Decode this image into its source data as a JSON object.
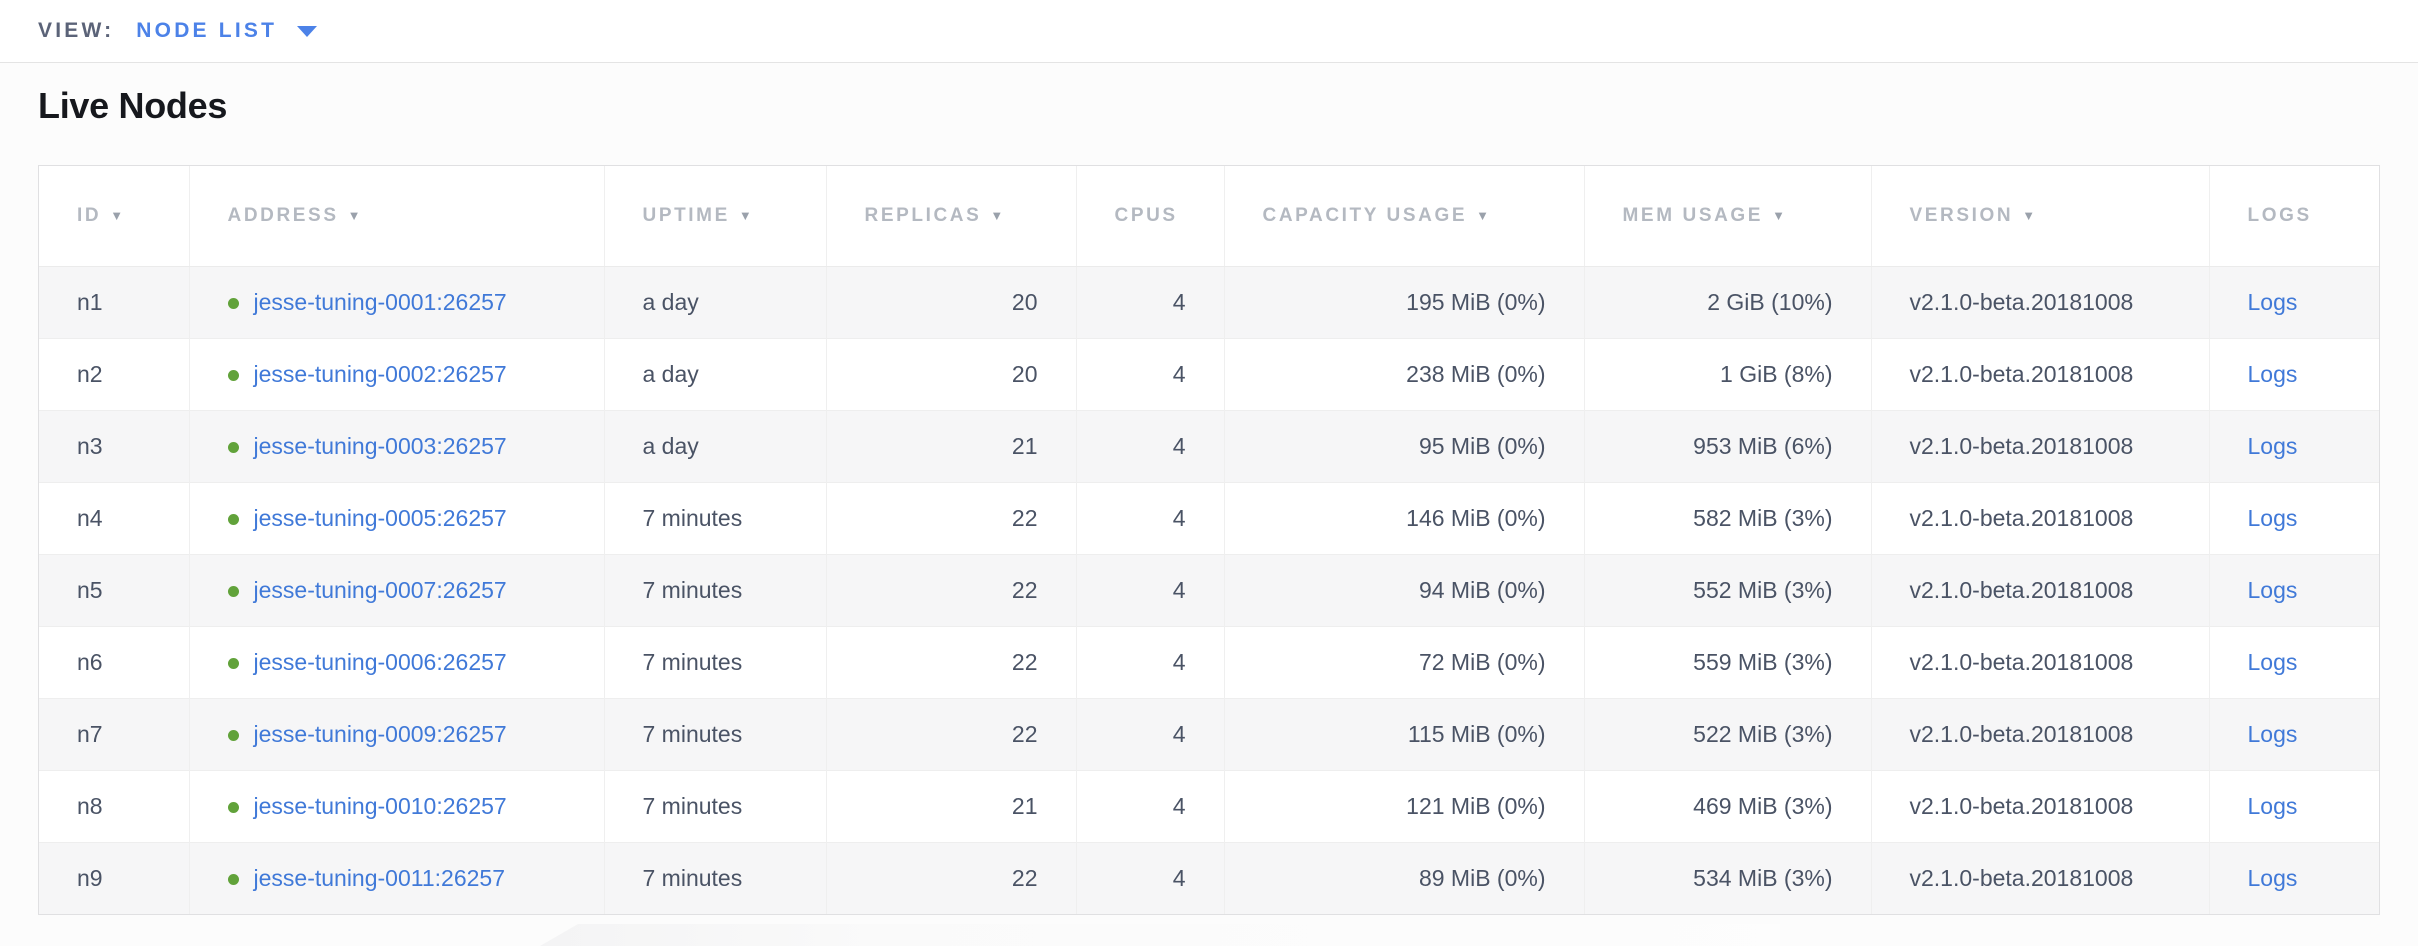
{
  "view_bar": {
    "label": "VIEW:",
    "selected_view": "NODE LIST"
  },
  "page": {
    "title": "Live Nodes"
  },
  "table": {
    "columns": [
      {
        "key": "id",
        "label": "ID",
        "sortable": true,
        "align": "left"
      },
      {
        "key": "address",
        "label": "ADDRESS",
        "sortable": true,
        "align": "left"
      },
      {
        "key": "uptime",
        "label": "UPTIME",
        "sortable": true,
        "align": "left"
      },
      {
        "key": "replicas",
        "label": "REPLICAS",
        "sortable": true,
        "align": "right"
      },
      {
        "key": "cpus",
        "label": "CPUS",
        "sortable": false,
        "align": "right"
      },
      {
        "key": "capacity_usage",
        "label": "CAPACITY USAGE",
        "sortable": true,
        "align": "right"
      },
      {
        "key": "mem_usage",
        "label": "MEM USAGE",
        "sortable": true,
        "align": "right"
      },
      {
        "key": "version",
        "label": "VERSION",
        "sortable": true,
        "align": "left"
      },
      {
        "key": "logs",
        "label": "LOGS",
        "sortable": false,
        "align": "left"
      }
    ],
    "rows": [
      {
        "id": "n1",
        "address": "jesse-tuning-0001:26257",
        "uptime": "a day",
        "replicas": "20",
        "cpus": "4",
        "capacity_usage": "195 MiB (0%)",
        "mem_usage": "2 GiB (10%)",
        "version": "v2.1.0-beta.20181008",
        "logs": "Logs",
        "status": "live"
      },
      {
        "id": "n2",
        "address": "jesse-tuning-0002:26257",
        "uptime": "a day",
        "replicas": "20",
        "cpus": "4",
        "capacity_usage": "238 MiB (0%)",
        "mem_usage": "1 GiB (8%)",
        "version": "v2.1.0-beta.20181008",
        "logs": "Logs",
        "status": "live"
      },
      {
        "id": "n3",
        "address": "jesse-tuning-0003:26257",
        "uptime": "a day",
        "replicas": "21",
        "cpus": "4",
        "capacity_usage": "95 MiB (0%)",
        "mem_usage": "953 MiB (6%)",
        "version": "v2.1.0-beta.20181008",
        "logs": "Logs",
        "status": "live"
      },
      {
        "id": "n4",
        "address": "jesse-tuning-0005:26257",
        "uptime": "7 minutes",
        "replicas": "22",
        "cpus": "4",
        "capacity_usage": "146 MiB (0%)",
        "mem_usage": "582 MiB (3%)",
        "version": "v2.1.0-beta.20181008",
        "logs": "Logs",
        "status": "live"
      },
      {
        "id": "n5",
        "address": "jesse-tuning-0007:26257",
        "uptime": "7 minutes",
        "replicas": "22",
        "cpus": "4",
        "capacity_usage": "94 MiB (0%)",
        "mem_usage": "552 MiB (3%)",
        "version": "v2.1.0-beta.20181008",
        "logs": "Logs",
        "status": "live"
      },
      {
        "id": "n6",
        "address": "jesse-tuning-0006:26257",
        "uptime": "7 minutes",
        "replicas": "22",
        "cpus": "4",
        "capacity_usage": "72 MiB (0%)",
        "mem_usage": "559 MiB (3%)",
        "version": "v2.1.0-beta.20181008",
        "logs": "Logs",
        "status": "live"
      },
      {
        "id": "n7",
        "address": "jesse-tuning-0009:26257",
        "uptime": "7 minutes",
        "replicas": "22",
        "cpus": "4",
        "capacity_usage": "115 MiB (0%)",
        "mem_usage": "522 MiB (3%)",
        "version": "v2.1.0-beta.20181008",
        "logs": "Logs",
        "status": "live"
      },
      {
        "id": "n8",
        "address": "jesse-tuning-0010:26257",
        "uptime": "7 minutes",
        "replicas": "21",
        "cpus": "4",
        "capacity_usage": "121 MiB (0%)",
        "mem_usage": "469 MiB (3%)",
        "version": "v2.1.0-beta.20181008",
        "logs": "Logs",
        "status": "live"
      },
      {
        "id": "n9",
        "address": "jesse-tuning-0011:26257",
        "uptime": "7 minutes",
        "replicas": "22",
        "cpus": "4",
        "capacity_usage": "89 MiB (0%)",
        "mem_usage": "534 MiB (3%)",
        "version": "v2.1.0-beta.20181008",
        "logs": "Logs",
        "status": "live"
      }
    ]
  },
  "icons": {
    "sort_arrow": "▼",
    "dropdown_caret": "caret-down"
  },
  "colors": {
    "link_blue": "#4079d8",
    "view_selected_blue": "#4c82e8",
    "view_label_gray": "#5b6378",
    "header_label_gray": "#b4b9c1",
    "cell_text_slate": "#4a5365",
    "live_dot_green": "#61a23a",
    "stripe_row_gray": "#f6f6f7",
    "border_gray": "#e0e0e2"
  }
}
